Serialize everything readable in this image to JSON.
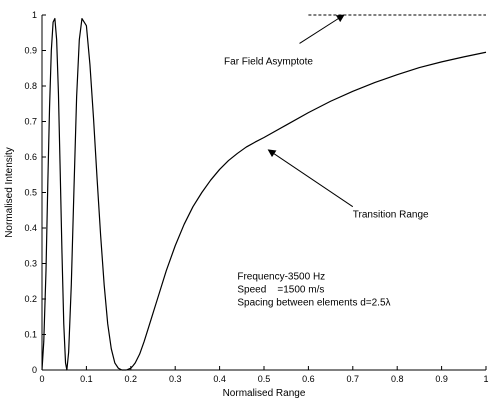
{
  "chart_data": {
    "type": "line",
    "xlabel": "Normalised Range",
    "ylabel": "Normalised Intensity",
    "xlim": [
      0,
      1
    ],
    "ylim": [
      0,
      1
    ],
    "grid": false,
    "x_ticks": [
      0,
      0.1,
      0.2,
      0.3,
      0.4,
      0.5,
      0.6,
      0.7,
      0.8,
      0.9,
      1
    ],
    "x_tick_labels": [
      "0",
      "0.1",
      "0.2",
      "0.3",
      "0.4",
      "0.5",
      "0.6",
      "0.7",
      "0.8",
      "0.9",
      "1"
    ],
    "y_ticks": [
      0,
      0.1,
      0.2,
      0.3,
      0.4,
      0.5,
      0.6,
      0.7,
      0.8,
      0.9,
      1
    ],
    "y_tick_labels": [
      "0",
      "0.1",
      "0.2",
      "0.3",
      "0.4",
      "0.5",
      "0.6",
      "0.7",
      "0.8",
      "0.9",
      "1"
    ],
    "series": [
      {
        "style": "solid",
        "color": "#000000",
        "x": [
          0,
          0.004,
          0.009,
          0.013,
          0.017,
          0.021,
          0.025,
          0.029,
          0.033,
          0.037,
          0.041,
          0.045,
          0.049,
          0.053,
          0.056,
          0.06,
          0.066,
          0.072,
          0.078,
          0.084,
          0.09,
          0.1,
          0.108,
          0.116,
          0.124,
          0.132,
          0.14,
          0.148,
          0.156,
          0.164,
          0.172,
          0.18,
          0.19,
          0.2,
          0.205,
          0.21,
          0.22,
          0.23,
          0.24,
          0.25,
          0.26,
          0.28,
          0.3,
          0.32,
          0.34,
          0.36,
          0.38,
          0.4,
          0.42,
          0.44,
          0.46,
          0.48,
          0.5,
          0.55,
          0.6,
          0.65,
          0.7,
          0.75,
          0.8,
          0.85,
          0.9,
          0.95,
          1.0
        ],
        "y": [
          0,
          0.08,
          0.28,
          0.52,
          0.74,
          0.9,
          0.98,
          0.99,
          0.93,
          0.78,
          0.56,
          0.33,
          0.13,
          0.02,
          0,
          0.05,
          0.24,
          0.51,
          0.77,
          0.93,
          0.99,
          0.97,
          0.86,
          0.71,
          0.54,
          0.38,
          0.24,
          0.13,
          0.06,
          0.02,
          0.005,
          0.0,
          0.0,
          0.005,
          0.012,
          0.02,
          0.045,
          0.08,
          0.12,
          0.16,
          0.2,
          0.28,
          0.35,
          0.41,
          0.46,
          0.5,
          0.535,
          0.565,
          0.59,
          0.61,
          0.628,
          0.642,
          0.655,
          0.69,
          0.725,
          0.757,
          0.785,
          0.81,
          0.832,
          0.852,
          0.868,
          0.882,
          0.895
        ]
      }
    ],
    "asymptote": {
      "y": 1,
      "x_start": 0.6,
      "x_end": 1
    },
    "annotations": [
      {
        "text": "Far Field Asymptote",
        "text_x": 0.41,
        "text_y": 0.86,
        "arrow_from": [
          0.58,
          0.92
        ],
        "arrow_to": [
          0.68,
          1.0
        ]
      },
      {
        "text": "Transition Range",
        "text_x": 0.7,
        "text_y": 0.43,
        "arrow_from": [
          0.7,
          0.46
        ],
        "arrow_to": [
          0.51,
          0.62
        ]
      }
    ],
    "parameters": [
      "Frequency-3500 Hz",
      "Speed    =1500 m/s",
      "Spacing between elements d=2.5λ"
    ],
    "parameters_anchor": {
      "x": 0.44,
      "y": 0.255
    }
  }
}
